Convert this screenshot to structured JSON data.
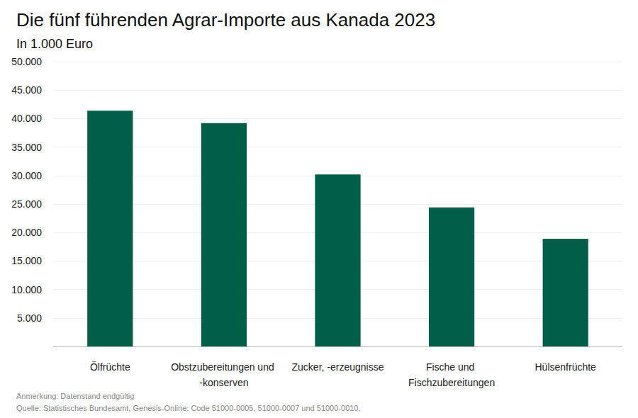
{
  "chart_data": {
    "type": "bar",
    "title": "Die fünf führenden Agrar-Importe aus Kanada 2023",
    "subtitle": "In 1.000 Euro",
    "categories": [
      "Ölfrüchte",
      "Obstzubereitungen und -konserven",
      "Zucker, -erzeugnisse",
      "Fische und Fischzubereitungen",
      "Hülsenfrüchte"
    ],
    "values": [
      41400,
      39200,
      30200,
      24400,
      18900
    ],
    "color": "#005e49",
    "ylim": [
      0,
      50000
    ],
    "yticks": [
      {
        "value": 5000,
        "label": "5.000"
      },
      {
        "value": 10000,
        "label": "10.000"
      },
      {
        "value": 15000,
        "label": "15.000"
      },
      {
        "value": 20000,
        "label": "20.000"
      },
      {
        "value": 25000,
        "label": "25.000"
      },
      {
        "value": 30000,
        "label": "30.000"
      },
      {
        "value": 35000,
        "label": "35.000"
      },
      {
        "value": 40000,
        "label": "40.000"
      },
      {
        "value": 45000,
        "label": "45.000"
      },
      {
        "value": 50000,
        "label": "50.000"
      }
    ],
    "grid": true,
    "annotations": [
      "Anmerkung: Datenstand endgültig",
      "Quelle: Statistisches Bundesamt, Genesis-Online: Code 51000-0005, 51000-0007 und 51000-0010."
    ]
  }
}
